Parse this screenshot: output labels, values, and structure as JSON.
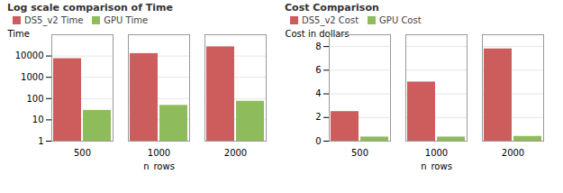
{
  "chart_data": [
    {
      "type": "bar",
      "title": "Log scale comparison of Time",
      "categories": [
        "500",
        "1000",
        "2000"
      ],
      "series": [
        {
          "name": "DS5_v2 Time",
          "color": "#cd5c5c",
          "values": [
            7500,
            13000,
            27000
          ]
        },
        {
          "name": "GPU Time",
          "color": "#8fbc5a",
          "values": [
            28,
            48,
            75
          ]
        }
      ],
      "xlabel": "n_rows",
      "ylabel": "Time",
      "log": "y",
      "ylim": [
        1,
        100000
      ],
      "yticks": [
        1,
        10,
        100,
        1000,
        10000
      ],
      "grid": true,
      "legend": "upper left"
    },
    {
      "type": "bar",
      "title": "Cost Comparison",
      "categories": [
        "500",
        "1000",
        "2000"
      ],
      "series": [
        {
          "name": "DS5_v2 Cost",
          "color": "#cd5c5c",
          "values": [
            2.5,
            5.0,
            7.8
          ]
        },
        {
          "name": "GPU Cost",
          "color": "#8fbc5a",
          "values": [
            0.35,
            0.35,
            0.4
          ]
        }
      ],
      "xlabel": "n_rows",
      "ylabel": "Cost in dollars",
      "ylim": [
        0,
        9
      ],
      "yticks": [
        0,
        2,
        4,
        6,
        8
      ],
      "grid": true,
      "legend": "upper left"
    }
  ]
}
